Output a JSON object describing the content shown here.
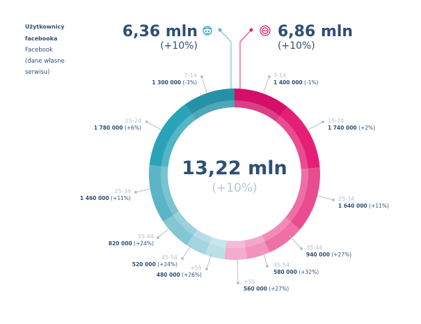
{
  "note": {
    "title_line1": "Użytkownicy",
    "title_line2": "facebooka",
    "line3": "Facebook",
    "line4": "(dane własne",
    "line5": "serwisu)"
  },
  "men": {
    "total": "6,36 mln",
    "change": "(+10%)",
    "icon": "male-face-icon",
    "color": "#2aa3b8"
  },
  "women": {
    "total": "6,86 mln",
    "change": "(+10%)",
    "icon": "female-face-icon",
    "color": "#e61f78"
  },
  "center": {
    "total": "13,22 mln",
    "change": "(+10%)"
  },
  "chart_data": {
    "type": "pie",
    "subtype": "donut",
    "unit": "users",
    "series": [
      {
        "name": "women",
        "segments": [
          {
            "age": "7-14",
            "value": 1400000,
            "value_label": "1 400 000",
            "change": "(-1%)",
            "color": "#d30f69"
          },
          {
            "age": "15-24",
            "value": 1740000,
            "value_label": "1 740 000",
            "change": "(+2%)",
            "color": "#e61f76"
          },
          {
            "age": "25-34",
            "value": 1640000,
            "value_label": "1 640 000",
            "change": "(+11%)",
            "color": "#ea4c90"
          },
          {
            "age": "35-44",
            "value": 940000,
            "value_label": "940 000",
            "change": "(+27%)",
            "color": "#ee70a5"
          },
          {
            "age": "45-54",
            "value": 580000,
            "value_label": "580 000",
            "change": "(+32%)",
            "color": "#f193bd"
          },
          {
            "age": "+55",
            "value": 560000,
            "value_label": "560 000",
            "change": "(+27%)",
            "color": "#f3acce"
          }
        ]
      },
      {
        "name": "men",
        "segments": [
          {
            "age": "+55",
            "value": 480000,
            "value_label": "480 000",
            "change": "(+26%)",
            "color": "#bbe0e6"
          },
          {
            "age": "45-54",
            "value": 520000,
            "value_label": "520 000",
            "change": "(+24%)",
            "color": "#a4d4df"
          },
          {
            "age": "35-44",
            "value": 820000,
            "value_label": "820 000",
            "change": "(+24%)",
            "color": "#83c6d3"
          },
          {
            "age": "25-34",
            "value": 1460000,
            "value_label": "1 460 000",
            "change": "(+11%)",
            "color": "#5bb4c7"
          },
          {
            "age": "15-24",
            "value": 1780000,
            "value_label": "1 780 000",
            "change": "(+6%)",
            "color": "#2aa3b8"
          },
          {
            "age": "7-14",
            "value": 1300000,
            "value_label": "1 300 000",
            "change": "(-3%)",
            "color": "#2590a6"
          }
        ]
      }
    ]
  }
}
